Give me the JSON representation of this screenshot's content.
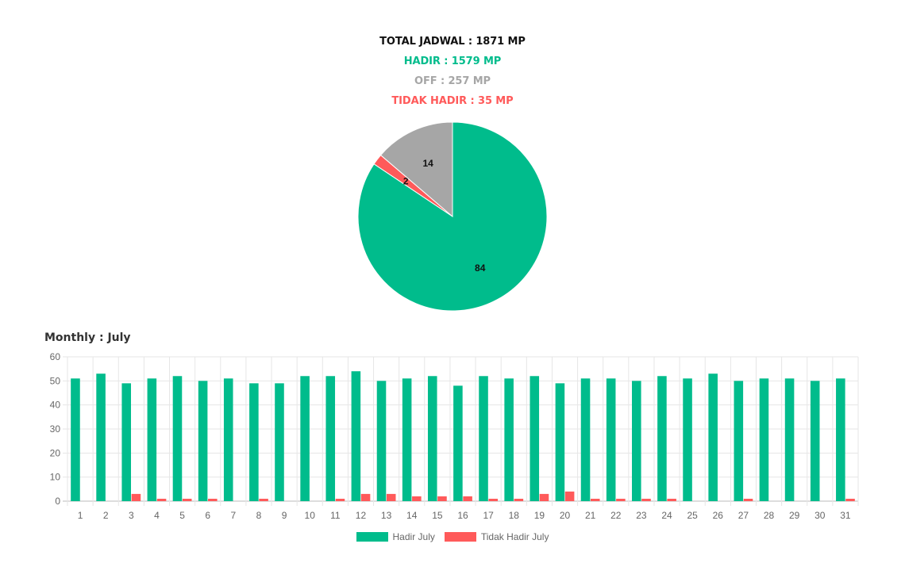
{
  "summary": {
    "total": "TOTAL JADWAL : 1871 MP",
    "hadir": "HADIR : 1579 MP",
    "off": "OFF : 257 MP",
    "tidak_hadir": "TIDAK HADIR : 35 MP"
  },
  "colors": {
    "hadir": "#00bc8c",
    "off": "#a6a6a6",
    "tidak_hadir": "#ff5a5a"
  },
  "monthly_title": "Monthly : July",
  "chart_data": [
    {
      "type": "pie",
      "slices": [
        {
          "key": "hadir",
          "value": 1579,
          "label": "84"
        },
        {
          "key": "tidak_hadir",
          "value": 35,
          "label": "2"
        },
        {
          "key": "off",
          "value": 257,
          "label": "14"
        }
      ]
    },
    {
      "type": "bar",
      "categories": [
        "1",
        "2",
        "3",
        "4",
        "5",
        "6",
        "7",
        "8",
        "9",
        "10",
        "11",
        "12",
        "13",
        "14",
        "15",
        "16",
        "17",
        "18",
        "19",
        "20",
        "21",
        "22",
        "23",
        "24",
        "25",
        "26",
        "27",
        "28",
        "29",
        "30",
        "31"
      ],
      "series": [
        {
          "name": "Hadir July",
          "key": "hadir",
          "values": [
            51,
            53,
            49,
            51,
            52,
            50,
            51,
            49,
            49,
            52,
            52,
            54,
            50,
            51,
            52,
            48,
            52,
            51,
            52,
            49,
            51,
            51,
            50,
            52,
            51,
            53,
            50,
            51,
            51,
            50,
            51
          ]
        },
        {
          "name": "Tidak Hadir July",
          "key": "tidak_hadir",
          "values": [
            0,
            0,
            3,
            1,
            1,
            1,
            0,
            1,
            0,
            0,
            1,
            3,
            3,
            2,
            2,
            2,
            1,
            1,
            3,
            4,
            1,
            1,
            1,
            1,
            0,
            0,
            1,
            0,
            0,
            0,
            1
          ]
        }
      ],
      "yticks": [
        "0",
        "10",
        "20",
        "30",
        "40",
        "50",
        "60"
      ],
      "ylim": [
        0,
        60
      ],
      "grid": true,
      "legend": "bottom"
    }
  ]
}
